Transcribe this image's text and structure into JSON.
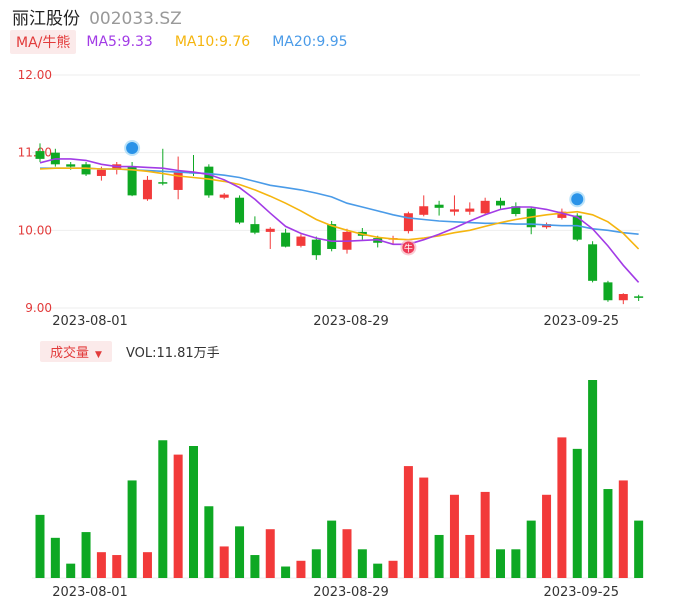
{
  "header": {
    "name": "丽江股份",
    "code": "002033.SZ"
  },
  "ma_bar": {
    "button": "MA/牛熊",
    "ma5": "MA5:9.33",
    "ma10": "MA10:9.76",
    "ma20": "MA20:9.95"
  },
  "volume_bar": {
    "button": "成交量",
    "value": "VOL:11.81万手"
  },
  "colors": {
    "up": "#f23a3a",
    "down": "#0ea823",
    "ma5": "#a23be6",
    "ma10": "#f5b50f",
    "ma20": "#4a9be8",
    "grid": "#eeeeee",
    "label": "#e23b3b"
  },
  "chart_data": [
    {
      "type": "candlestick",
      "title": "丽江股份 002033.SZ",
      "ylim": [
        9.0,
        12.0
      ],
      "yticks": [
        "12.00",
        "11.00",
        "10.00",
        "9.00"
      ],
      "ytick_values": [
        12.0,
        11.0,
        10.0,
        9.0
      ],
      "x_tick_labels": [
        {
          "label": "2023-08-01",
          "index": 3
        },
        {
          "label": "2023-08-29",
          "index": 20
        },
        {
          "label": "2023-09-25",
          "index": 35
        }
      ],
      "candles": [
        {
          "o": 11.02,
          "c": 10.92,
          "h": 11.12,
          "l": 10.88
        },
        {
          "o": 11.0,
          "c": 10.85,
          "h": 11.05,
          "l": 10.82
        },
        {
          "o": 10.85,
          "c": 10.82,
          "h": 10.88,
          "l": 10.78
        },
        {
          "o": 10.85,
          "c": 10.72,
          "h": 10.88,
          "l": 10.7
        },
        {
          "o": 10.7,
          "c": 10.78,
          "h": 10.82,
          "l": 10.64
        },
        {
          "o": 10.78,
          "c": 10.85,
          "h": 10.88,
          "l": 10.72
        },
        {
          "o": 10.82,
          "c": 10.45,
          "h": 10.88,
          "l": 10.44
        },
        {
          "o": 10.4,
          "c": 10.65,
          "h": 10.7,
          "l": 10.38
        },
        {
          "o": 10.62,
          "c": 10.61,
          "h": 11.05,
          "l": 10.58
        },
        {
          "o": 10.52,
          "c": 10.75,
          "h": 10.95,
          "l": 10.4
        },
        {
          "o": 10.75,
          "c": 10.74,
          "h": 10.97,
          "l": 10.7
        },
        {
          "o": 10.82,
          "c": 10.45,
          "h": 10.85,
          "l": 10.42
        },
        {
          "o": 10.42,
          "c": 10.46,
          "h": 10.48,
          "l": 10.4
        },
        {
          "o": 10.42,
          "c": 10.1,
          "h": 10.45,
          "l": 10.08
        },
        {
          "o": 10.08,
          "c": 9.97,
          "h": 10.18,
          "l": 9.95
        },
        {
          "o": 9.98,
          "c": 10.02,
          "h": 10.04,
          "l": 9.76
        },
        {
          "o": 9.97,
          "c": 9.79,
          "h": 10.02,
          "l": 9.78
        },
        {
          "o": 9.8,
          "c": 9.92,
          "h": 9.95,
          "l": 9.78
        },
        {
          "o": 9.88,
          "c": 9.68,
          "h": 9.92,
          "l": 9.62
        },
        {
          "o": 10.08,
          "c": 9.76,
          "h": 10.12,
          "l": 9.73
        },
        {
          "o": 9.75,
          "c": 9.98,
          "h": 10.02,
          "l": 9.7
        },
        {
          "o": 9.98,
          "c": 9.93,
          "h": 10.03,
          "l": 9.88
        },
        {
          "o": 9.9,
          "c": 9.84,
          "h": 9.93,
          "l": 9.78
        },
        {
          "o": 9.88,
          "c": 9.9,
          "h": 9.93,
          "l": 9.82
        },
        {
          "o": 9.99,
          "c": 10.22,
          "h": 10.24,
          "l": 9.96
        },
        {
          "o": 10.2,
          "c": 10.31,
          "h": 10.45,
          "l": 10.18
        },
        {
          "o": 10.33,
          "c": 10.29,
          "h": 10.38,
          "l": 10.19
        },
        {
          "o": 10.24,
          "c": 10.27,
          "h": 10.45,
          "l": 10.19
        },
        {
          "o": 10.24,
          "c": 10.28,
          "h": 10.36,
          "l": 10.2
        },
        {
          "o": 10.22,
          "c": 10.38,
          "h": 10.42,
          "l": 10.2
        },
        {
          "o": 10.38,
          "c": 10.32,
          "h": 10.42,
          "l": 10.28
        },
        {
          "o": 10.31,
          "c": 10.21,
          "h": 10.36,
          "l": 10.18
        },
        {
          "o": 10.28,
          "c": 10.04,
          "h": 10.3,
          "l": 9.95
        },
        {
          "o": 10.04,
          "c": 10.08,
          "h": 10.1,
          "l": 10.02
        },
        {
          "o": 10.16,
          "c": 10.24,
          "h": 10.28,
          "l": 10.14
        },
        {
          "o": 10.19,
          "c": 9.88,
          "h": 10.22,
          "l": 9.86
        },
        {
          "o": 9.82,
          "c": 9.35,
          "h": 9.86,
          "l": 9.33
        },
        {
          "o": 9.33,
          "c": 9.1,
          "h": 9.35,
          "l": 9.08
        },
        {
          "o": 9.1,
          "c": 9.18,
          "h": 9.19,
          "l": 9.05
        },
        {
          "o": 9.15,
          "c": 9.14,
          "h": 9.17,
          "l": 9.09
        }
      ],
      "ma5": [
        10.87,
        10.92,
        10.92,
        10.9,
        10.85,
        10.82,
        10.82,
        10.81,
        10.8,
        10.77,
        10.75,
        10.72,
        10.65,
        10.55,
        10.4,
        10.22,
        10.05,
        9.96,
        9.9,
        9.86,
        9.86,
        9.87,
        9.88,
        9.82,
        9.82,
        9.88,
        9.95,
        10.03,
        10.12,
        10.2,
        10.27,
        10.3,
        10.3,
        10.27,
        10.22,
        10.17,
        10.02,
        9.8,
        9.55,
        9.33
      ],
      "ma10": [
        10.79,
        10.8,
        10.8,
        10.8,
        10.79,
        10.79,
        10.78,
        10.76,
        10.73,
        10.7,
        10.68,
        10.66,
        10.63,
        10.59,
        10.52,
        10.44,
        10.35,
        10.25,
        10.14,
        10.06,
        10.0,
        9.95,
        9.91,
        9.89,
        9.88,
        9.9,
        9.93,
        9.97,
        10.0,
        10.05,
        10.1,
        10.14,
        10.17,
        10.2,
        10.22,
        10.24,
        10.2,
        10.11,
        9.96,
        9.76
      ],
      "ma20": [
        10.8,
        10.8,
        10.8,
        10.8,
        10.79,
        10.79,
        10.78,
        10.77,
        10.76,
        10.75,
        10.74,
        10.73,
        10.71,
        10.68,
        10.63,
        10.58,
        10.55,
        10.52,
        10.48,
        10.43,
        10.35,
        10.3,
        10.25,
        10.2,
        10.16,
        10.14,
        10.12,
        10.11,
        10.1,
        10.09,
        10.09,
        10.08,
        10.08,
        10.07,
        10.06,
        10.06,
        10.02,
        10.0,
        9.97,
        9.95
      ],
      "markers": [
        {
          "index": 6,
          "type": "bear"
        },
        {
          "index": 24,
          "type": "bull",
          "label": "牛"
        },
        {
          "index": 35,
          "type": "bear"
        }
      ]
    },
    {
      "type": "bar",
      "title": "成交量",
      "volumes": [
        22,
        14,
        5,
        16,
        9,
        8,
        34,
        9,
        48,
        43,
        46,
        25,
        11,
        18,
        8,
        17,
        4,
        6,
        10,
        20,
        17,
        10,
        5,
        6,
        39,
        35,
        15,
        29,
        15,
        30,
        10,
        10,
        20,
        29,
        49,
        45,
        69,
        31,
        34,
        20
      ],
      "ymax": 69
    }
  ]
}
